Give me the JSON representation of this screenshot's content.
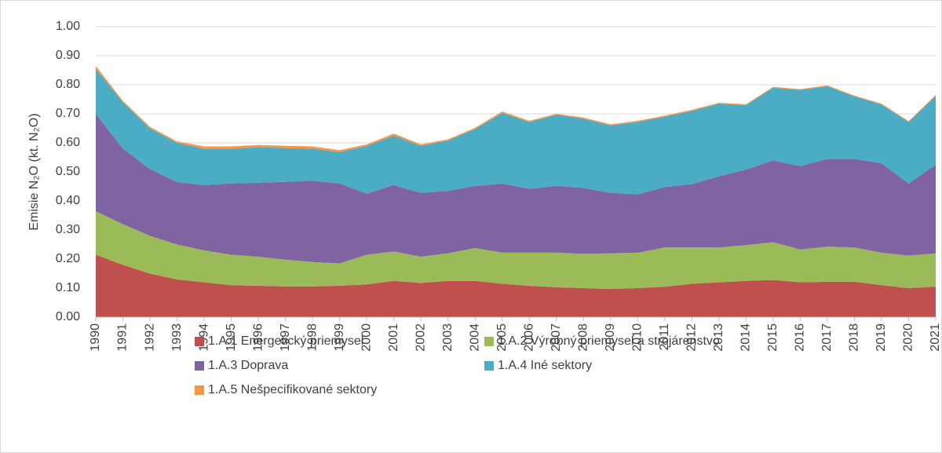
{
  "chart_data": {
    "type": "stacked-area",
    "y_label": "Emisie N₂O (kt. N₂O)",
    "categories": [
      "1990",
      "1991",
      "1992",
      "1993",
      "1994",
      "1995",
      "1996",
      "1997",
      "1998",
      "1999",
      "2000",
      "2001",
      "2002",
      "2003",
      "2004",
      "2005",
      "2006",
      "2007",
      "2008",
      "2009",
      "2010",
      "2011",
      "2012",
      "2013",
      "2014",
      "2015",
      "2016",
      "2017",
      "2018",
      "2019",
      "2020",
      "2021"
    ],
    "series": [
      {
        "name": "1.A.1 Energetický priemysel",
        "color": "#c0504d",
        "values": [
          0.215,
          0.18,
          0.15,
          0.13,
          0.12,
          0.11,
          0.108,
          0.106,
          0.106,
          0.108,
          0.113,
          0.125,
          0.118,
          0.125,
          0.125,
          0.115,
          0.108,
          0.103,
          0.1,
          0.097,
          0.1,
          0.105,
          0.115,
          0.12,
          0.125,
          0.128,
          0.12,
          0.122,
          0.122,
          0.11,
          0.1,
          0.105
        ]
      },
      {
        "name": "1.A.2 Výrobný priemysel a strojárenstvo",
        "color": "#9bbb59",
        "values": [
          0.15,
          0.14,
          0.13,
          0.12,
          0.11,
          0.105,
          0.1,
          0.092,
          0.084,
          0.077,
          0.102,
          0.101,
          0.09,
          0.095,
          0.113,
          0.107,
          0.114,
          0.119,
          0.118,
          0.123,
          0.122,
          0.135,
          0.125,
          0.12,
          0.123,
          0.13,
          0.113,
          0.121,
          0.118,
          0.112,
          0.112,
          0.115
        ]
      },
      {
        "name": "1.A.3 Doprava",
        "color": "#8064a2",
        "values": [
          0.335,
          0.26,
          0.23,
          0.215,
          0.225,
          0.245,
          0.255,
          0.268,
          0.28,
          0.275,
          0.21,
          0.229,
          0.22,
          0.215,
          0.214,
          0.238,
          0.22,
          0.23,
          0.227,
          0.208,
          0.201,
          0.208,
          0.218,
          0.245,
          0.26,
          0.282,
          0.287,
          0.302,
          0.305,
          0.308,
          0.248,
          0.305
        ]
      },
      {
        "name": "1.A.4 Iné sektory",
        "color": "#4bacc6",
        "values": [
          0.155,
          0.16,
          0.14,
          0.135,
          0.125,
          0.12,
          0.122,
          0.116,
          0.11,
          0.108,
          0.165,
          0.17,
          0.162,
          0.173,
          0.196,
          0.243,
          0.23,
          0.245,
          0.238,
          0.232,
          0.249,
          0.242,
          0.252,
          0.25,
          0.222,
          0.25,
          0.262,
          0.25,
          0.215,
          0.202,
          0.212,
          0.237
        ]
      },
      {
        "name": "1.A.5 Nešpecifikované sektory",
        "color": "#f79646",
        "values": [
          0.01,
          0.005,
          0.005,
          0.005,
          0.008,
          0.008,
          0.008,
          0.008,
          0.008,
          0.007,
          0.005,
          0.007,
          0.005,
          0.004,
          0.004,
          0.005,
          0.004,
          0.003,
          0.004,
          0.004,
          0.004,
          0.004,
          0.004,
          0.003,
          0.003,
          0.003,
          0.003,
          0.003,
          0.003,
          0.003,
          0.003,
          0.003
        ]
      }
    ],
    "ylim": [
      0,
      1
    ],
    "yticks": [
      {
        "value": 0,
        "label": "0.00"
      },
      {
        "value": 0.1,
        "label": "0.10"
      },
      {
        "value": 0.2,
        "label": "0.20"
      },
      {
        "value": 0.3,
        "label": "0.30"
      },
      {
        "value": 0.4,
        "label": "0.40"
      },
      {
        "value": 0.5,
        "label": "0.50"
      },
      {
        "value": 0.6,
        "label": "0.60"
      },
      {
        "value": 0.7,
        "label": "0.70"
      },
      {
        "value": 0.8,
        "label": "0.80"
      },
      {
        "value": 0.9,
        "label": "0.90"
      },
      {
        "value": 1,
        "label": "1.00"
      }
    ],
    "grid": true
  }
}
